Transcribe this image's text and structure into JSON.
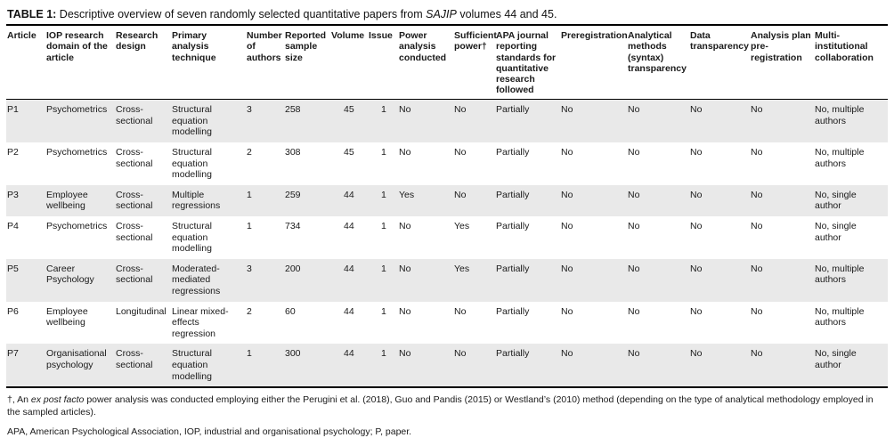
{
  "title": {
    "label": "TABLE 1:",
    "text_prefix": " Descriptive overview of seven randomly selected quantitative papers from ",
    "text_italic": "SAJIP",
    "text_suffix": " volumes 44 and 45."
  },
  "table": {
    "columns": [
      "Article",
      "IOP research domain of the article",
      "Research design",
      "Primary analysis technique",
      "Number of authors",
      "Reported sample size",
      "Volume",
      "Issue",
      "Power analysis conducted",
      "Sufficient power†",
      "APA journal reporting standards for quantitative research followed",
      "Preregistration",
      "Analytical methods (syntax) transparency",
      "Data transparency",
      "Analysis plan pre-registration",
      "Multi-institutional collaboration"
    ],
    "rows": [
      [
        "P1",
        "Psychometrics",
        "Cross-sectional",
        "Structural equation modelling",
        "3",
        "258",
        "45",
        "1",
        "No",
        "No",
        "Partially",
        "No",
        "No",
        "No",
        "No",
        "No, multiple authors"
      ],
      [
        "P2",
        "Psychometrics",
        "Cross-sectional",
        "Structural equation modelling",
        "2",
        "308",
        "45",
        "1",
        "No",
        "No",
        "Partially",
        "No",
        "No",
        "No",
        "No",
        "No, multiple authors"
      ],
      [
        "P3",
        "Employee wellbeing",
        "Cross-sectional",
        "Multiple regressions",
        "1",
        "259",
        "44",
        "1",
        "Yes",
        "No",
        "Partially",
        "No",
        "No",
        "No",
        "No",
        "No, single author"
      ],
      [
        "P4",
        "Psychometrics",
        "Cross-sectional",
        "Structural equation modelling",
        "1",
        "734",
        "44",
        "1",
        "No",
        "Yes",
        "Partially",
        "No",
        "No",
        "No",
        "No",
        "No, single author"
      ],
      [
        "P5",
        "Career Psychology",
        "Cross-sectional",
        "Moderated-mediated regressions",
        "3",
        "200",
        "44",
        "1",
        "No",
        "Yes",
        "Partially",
        "No",
        "No",
        "No",
        "No",
        "No, multiple authors"
      ],
      [
        "P6",
        "Employee wellbeing",
        "Longitudinal",
        "Linear mixed-effects regression",
        "2",
        "60",
        "44",
        "1",
        "No",
        "No",
        "Partially",
        "No",
        "No",
        "No",
        "No",
        "No, multiple authors"
      ],
      [
        "P7",
        "Organisational psychology",
        "Cross-sectional",
        "Structural equation modelling",
        "1",
        "300",
        "44",
        "1",
        "No",
        "No",
        "Partially",
        "No",
        "No",
        "No",
        "No",
        "No, single author"
      ]
    ]
  },
  "footnotes": {
    "dagger_prefix": "†, An ",
    "dagger_italic": "ex post facto",
    "dagger_suffix": " power analysis was conducted employing either the Perugini et al. (2018), Guo and Pandis (2015) or Westland’s (2010) method (depending on the type of analytical methodology employed in the sampled articles).",
    "abbreviations": "APA, American Psychological Association, IOP, industrial and organisational psychology; P, paper."
  },
  "colors": {
    "row_stripe": "#e9e9e9",
    "rule": "#000000",
    "text": "#1a1a1a"
  }
}
